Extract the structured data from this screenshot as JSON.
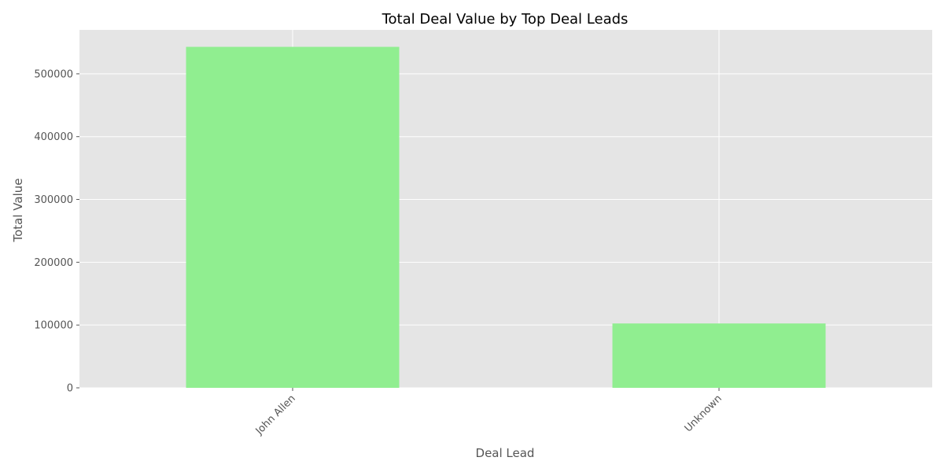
{
  "chart_data": {
    "type": "bar",
    "title": "Total Deal Value by Top Deal Leads",
    "xlabel": "Deal Lead",
    "ylabel": "Total Value",
    "categories": [
      "John Allen",
      "Unknown"
    ],
    "values": [
      543000,
      102500
    ],
    "ylim": [
      0,
      570000
    ],
    "yticks": [
      0,
      100000,
      200000,
      300000,
      400000,
      500000
    ],
    "ytick_labels": [
      "0",
      "100000",
      "200000",
      "300000",
      "400000",
      "500000"
    ],
    "grid": true,
    "legend": "none",
    "x_tick_rotation": 45,
    "colors": {
      "bar": "#90ee90",
      "plot_background": "#e5e5e5",
      "grid": "#ffffff"
    }
  }
}
